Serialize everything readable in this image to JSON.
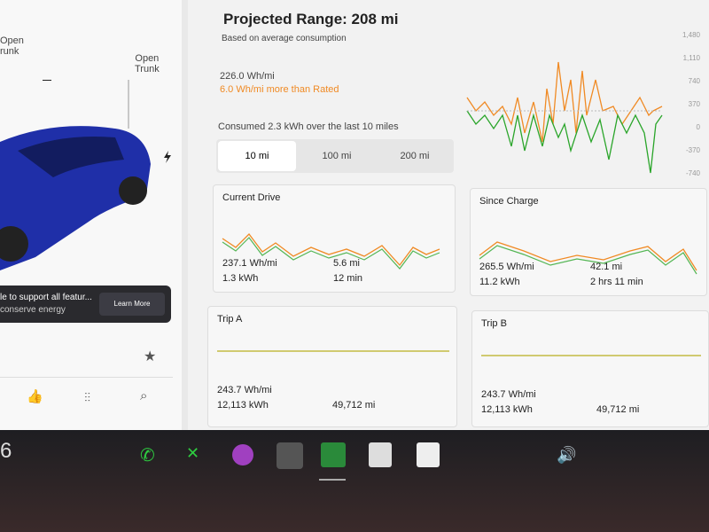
{
  "left_panel": {
    "frunk_label": [
      "Open",
      "runk"
    ],
    "trunk_label": [
      "Open",
      "Trunk"
    ],
    "banner": {
      "line1": "le to support all featur...",
      "line2": "conserve energy",
      "button": "Learn More"
    }
  },
  "header": {
    "title": "Projected Range: 208 mi",
    "subtitle": "Based on average consumption",
    "average": "226.0 Wh/mi",
    "rated_delta": "6.0 Wh/mi more than Rated",
    "consumed": "Consumed 2.3 kWh over the last 10 miles",
    "tabs": [
      "10 mi",
      "100 mi",
      "200 mi"
    ]
  },
  "graph": {
    "axis_labels": [
      "1,480",
      "1,110",
      "740",
      "370",
      "0",
      "-370",
      "-740"
    ]
  },
  "cards": [
    {
      "title": "Current Drive",
      "energy_rate": "237.1 Wh/mi",
      "energy": "1.3 kWh",
      "distance": "5.6 mi",
      "time": "12 min"
    },
    {
      "title": "Since Charge",
      "energy_rate": "265.5 Wh/mi",
      "energy": "11.2 kWh",
      "distance": "42.1 mi",
      "time": "2 hrs 11 min"
    },
    {
      "title": "Trip A",
      "energy_rate": "243.7 Wh/mi",
      "energy": "12,113 kWh",
      "distance": "49,712 mi"
    },
    {
      "title": "Trip B",
      "energy_rate": "243.7 Wh/mi",
      "energy": "12,113 kWh",
      "distance": "49,712 mi"
    }
  ],
  "taskbar": {
    "speed": "6"
  }
}
